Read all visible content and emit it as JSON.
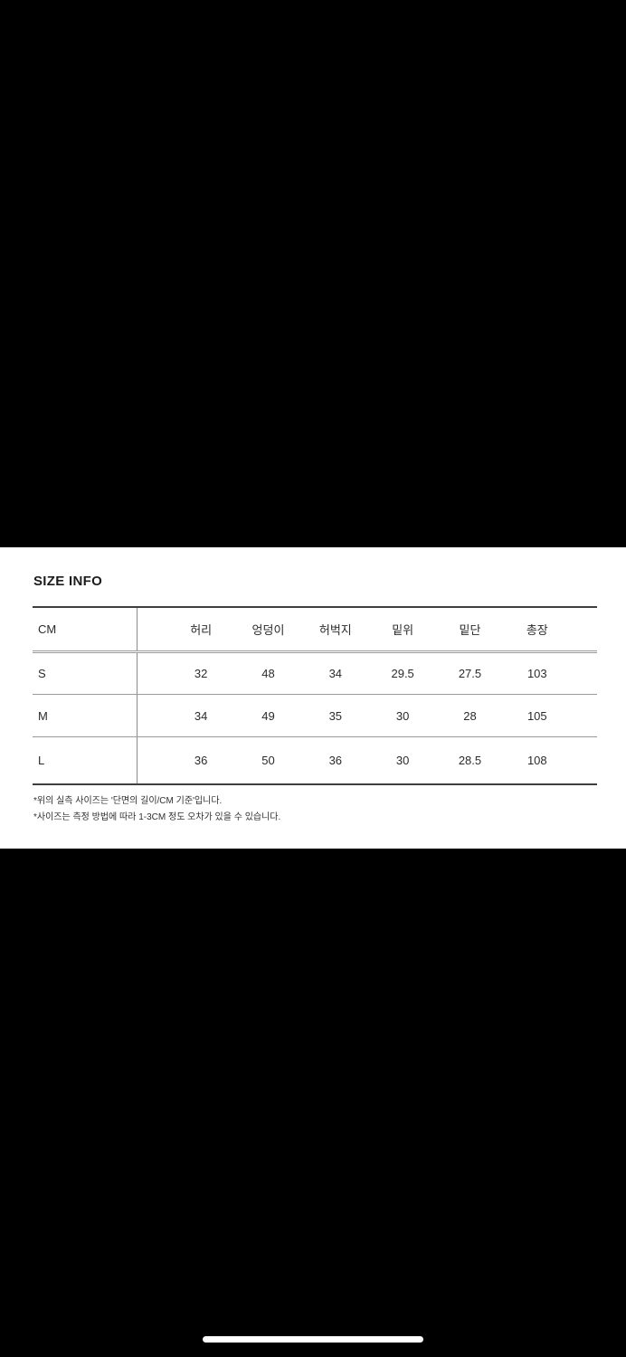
{
  "screen": {
    "background": "#000000"
  },
  "panel": {
    "background": "#ffffff"
  },
  "size_info": {
    "title": "SIZE INFO",
    "unit_label": "CM",
    "columns": [
      "허리",
      "엉덩이",
      "허벅지",
      "밑위",
      "밑단",
      "총장"
    ],
    "rows": [
      {
        "size": "S",
        "values": [
          "32",
          "48",
          "34",
          "29.5",
          "27.5",
          "103"
        ]
      },
      {
        "size": "M",
        "values": [
          "34",
          "49",
          "35",
          "30",
          "28",
          "105"
        ]
      },
      {
        "size": "L",
        "values": [
          "36",
          "50",
          "36",
          "30",
          "28.5",
          "108"
        ]
      }
    ],
    "notes": [
      "*위의 실측 사이즈는 '단면의 길이/CM 기준'입니다.",
      "*사이즈는 측정 방법에 따라 1-3CM 정도 오차가 있을 수 있습니다."
    ]
  }
}
